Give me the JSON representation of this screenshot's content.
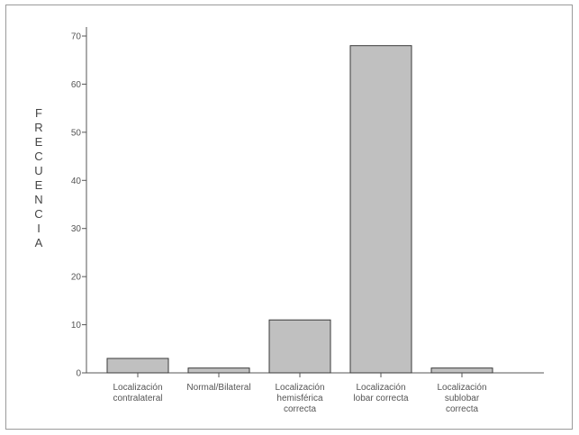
{
  "chart_data": {
    "type": "bar",
    "title": "",
    "xlabel": "",
    "ylabel": "FRECUENCIA",
    "categories": [
      [
        "Localización",
        "contralateral"
      ],
      [
        "Normal/Bilateral"
      ],
      [
        "Localización",
        "hemisférica",
        "correcta"
      ],
      [
        "Localización",
        "lobar correcta"
      ],
      [
        "Localización",
        "sublobar",
        "correcta"
      ]
    ],
    "values": [
      3,
      1,
      11,
      68,
      1
    ],
    "ylim": [
      0,
      70
    ],
    "yticks": [
      0,
      10,
      20,
      30,
      40,
      50,
      60,
      70
    ],
    "grid": false,
    "bar_color": "#c0c0c0",
    "bar_stroke": "#3a3a3a"
  }
}
